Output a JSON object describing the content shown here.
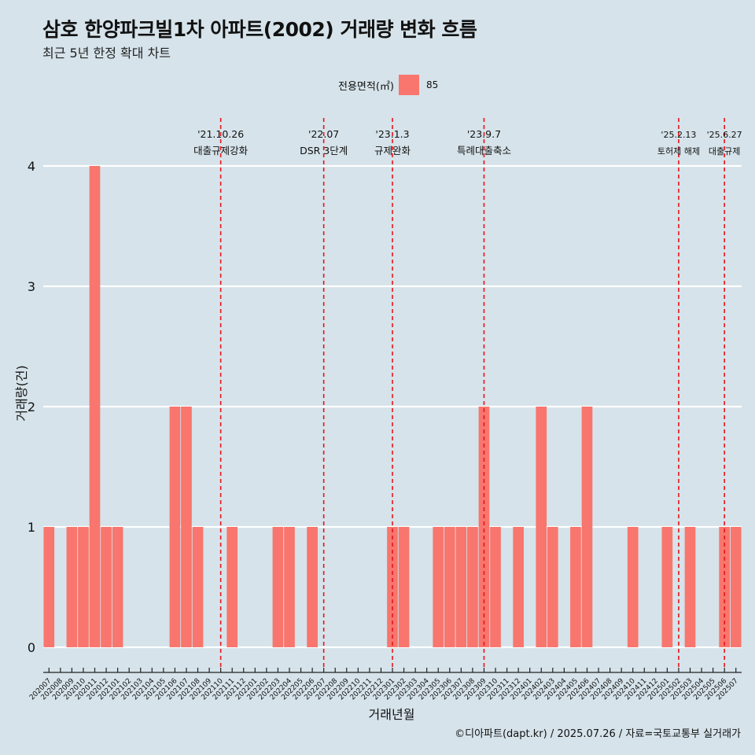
{
  "header": {
    "title": "삼호 한양파크빌1차 아파트(2002) 거래량 변화 흐름",
    "subtitle": "최근 5년 한정 확대 차트"
  },
  "legend": {
    "title": "전용면적(㎡)",
    "items": [
      {
        "label": "85",
        "color": "#f8766d"
      }
    ]
  },
  "caption": "©디아파트(dapt.kr) / 2025.07.26 / 자료=국토교통부 실거래가",
  "chart_data": {
    "type": "bar",
    "xlabel": "거래년월",
    "ylabel": "거래량(건)",
    "ylim": [
      0,
      4
    ],
    "yticks": [
      "0",
      "1",
      "2",
      "3",
      "4"
    ],
    "categories": [
      "202007",
      "202008",
      "202009",
      "202010",
      "202011",
      "202012",
      "202101",
      "202102",
      "202103",
      "202104",
      "202105",
      "202106",
      "202107",
      "202108",
      "202109",
      "202110",
      "202111",
      "202112",
      "202201",
      "202202",
      "202203",
      "202204",
      "202205",
      "202206",
      "202207",
      "202208",
      "202209",
      "202210",
      "202211",
      "202212",
      "202301",
      "202302",
      "202303",
      "202304",
      "202305",
      "202306",
      "202307",
      "202308",
      "202309",
      "202310",
      "202311",
      "202312",
      "202401",
      "202402",
      "202403",
      "202404",
      "202405",
      "202406",
      "202407",
      "202408",
      "202409",
      "202410",
      "202411",
      "202412",
      "202501",
      "202502",
      "202503",
      "202504",
      "202505",
      "202506",
      "202507"
    ],
    "series": [
      {
        "name": "85",
        "color": "#f8766d",
        "values": [
          1,
          0,
          1,
          1,
          4,
          1,
          1,
          0,
          0,
          0,
          0,
          2,
          2,
          1,
          0,
          0,
          1,
          0,
          0,
          0,
          1,
          1,
          0,
          1,
          0,
          0,
          0,
          0,
          0,
          0,
          1,
          1,
          0,
          0,
          1,
          1,
          1,
          1,
          2,
          1,
          0,
          1,
          0,
          2,
          1,
          0,
          1,
          2,
          0,
          0,
          0,
          1,
          0,
          0,
          1,
          0,
          1,
          0,
          0,
          1,
          1
        ]
      }
    ],
    "events": [
      {
        "date": "'21.10.26",
        "label": "대출규제강화",
        "category": "202110"
      },
      {
        "date": "'22.07",
        "label": "DSR 3단계",
        "category": "202207"
      },
      {
        "date": "'23.1.3",
        "label": "규제완화",
        "category": "202301"
      },
      {
        "date": "'23.9.7",
        "label": "특례대출축소",
        "category": "202309"
      },
      {
        "date": "'25.2.13",
        "label": "토허제 해제",
        "category": "202502"
      },
      {
        "date": "'25.6.27",
        "label": "대출규제",
        "category": "202506"
      }
    ],
    "grid": true,
    "legend_position": "top"
  }
}
